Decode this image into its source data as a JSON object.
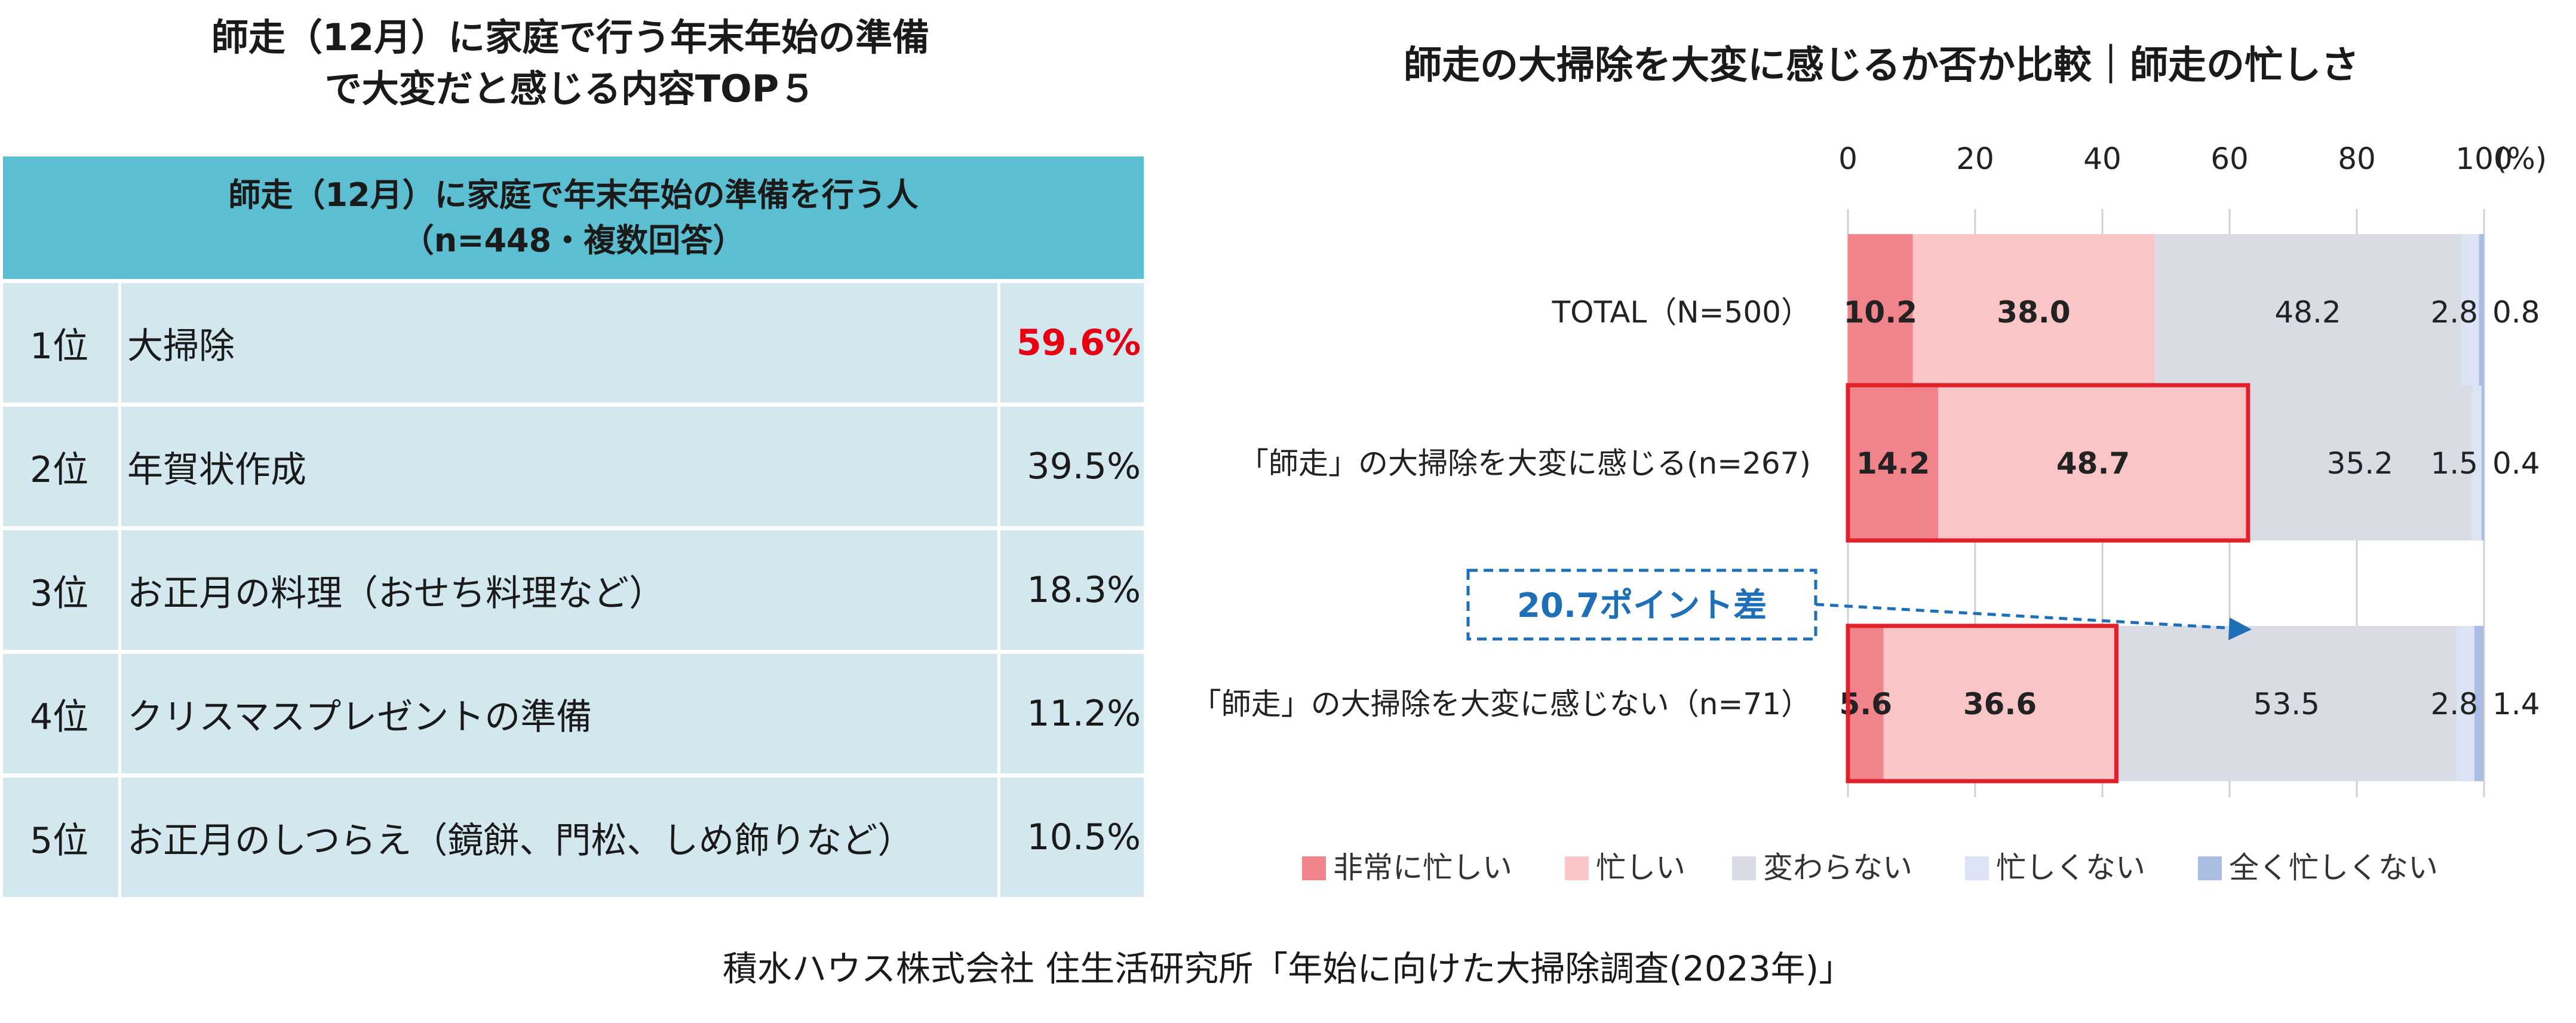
{
  "left": {
    "title_line1": "師走（12月）に家庭で行う年末年始の準備",
    "title_line2": "で大変だと感じる内容TOP５",
    "table": {
      "header_line1": "師走（12月）に家庭で年末年始の準備を行う人",
      "header_line2": "（n=448・複数回答）",
      "rows": [
        {
          "rank": "1位",
          "item": "大掃除",
          "pct": "59.6%"
        },
        {
          "rank": "2位",
          "item": "年賀状作成",
          "pct": "39.5%"
        },
        {
          "rank": "3位",
          "item": "お正月の料理（おせち料理など）",
          "pct": "18.3%"
        },
        {
          "rank": "4位",
          "item": "クリスマスプレゼントの準備",
          "pct": "11.2%"
        },
        {
          "rank": "5位",
          "item": "お正月のしつらえ（鏡餅、門松、しめ飾りなど）",
          "pct": "10.5%"
        }
      ]
    },
    "highlight_color": "#e60012",
    "header_color": "#5bbfd1",
    "row_color": "#d3e7ef"
  },
  "chart_data": {
    "type": "bar",
    "orientation": "horizontal",
    "stacked": true,
    "title": "師走の大掃除を大変に感じるか否か比較｜師走の忙しさ",
    "unit_label": "(%)",
    "xlim": [
      0,
      100
    ],
    "ticks": [
      "0",
      "20",
      "40",
      "60",
      "80",
      "100"
    ],
    "categories": [
      "TOTAL（N=500）",
      "「師走」の大掃除を大変に感じる(n=267)",
      "「師走」の大掃除を大変に感じない（n=71）"
    ],
    "series": [
      {
        "name": "非常に忙しい",
        "color": "#f0848a",
        "values": [
          10.2,
          14.2,
          5.6
        ]
      },
      {
        "name": "忙しい",
        "color": "#f9c5c6",
        "values": [
          38.0,
          48.7,
          36.6
        ]
      },
      {
        "name": "変わらない",
        "color": "#d9dce4",
        "values": [
          48.2,
          35.2,
          53.5
        ]
      },
      {
        "name": "忙しくない",
        "color": "#dbe3f4",
        "values": [
          2.8,
          1.5,
          2.8
        ]
      },
      {
        "name": "全く忙しくない",
        "color": "#a9bde2",
        "values": [
          0.8,
          0.4,
          1.4
        ]
      }
    ],
    "value_labels": [
      [
        "10.2",
        "38.0",
        "48.2",
        "2.8",
        "0.8"
      ],
      [
        "14.2",
        "48.7",
        "35.2",
        "1.5",
        "0.4"
      ],
      [
        "5.6",
        "36.6",
        "53.5",
        "2.8",
        "1.4"
      ]
    ],
    "bold_series": [
      0,
      1
    ],
    "annotation": {
      "text": "20.7ポイント差",
      "color": "#1f6fb8"
    },
    "highlight_box_color": "#e0202a",
    "legend_position": "bottom"
  },
  "source": "積水ハウス株式会社 住生活研究所「年始に向けた大掃除調査(2023年)」"
}
